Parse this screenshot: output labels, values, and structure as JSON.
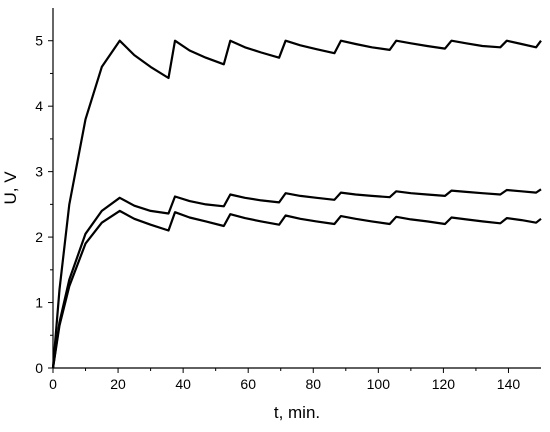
{
  "chart_data": {
    "type": "line",
    "title": "",
    "xlabel": "t, min.",
    "ylabel": "U, V",
    "xlim": [
      0,
      150
    ],
    "ylim": [
      0,
      5.5
    ],
    "xticks": [
      0,
      20,
      40,
      60,
      80,
      100,
      120,
      140
    ],
    "yticks": [
      0,
      1,
      2,
      3,
      4,
      5
    ],
    "grid": false,
    "legend": "none",
    "series": [
      {
        "x": [
          0,
          2,
          5,
          10,
          15,
          20.5,
          25,
          30,
          35.5,
          37.5,
          42,
          47,
          52.5,
          54.5,
          59,
          64,
          69.5,
          71.5,
          76,
          81,
          86.5,
          88.5,
          93,
          98,
          103.5,
          105.5,
          110,
          115,
          120.5,
          122.5,
          127,
          132,
          137.5,
          139.5,
          144,
          148.5,
          150
        ],
        "y": [
          0,
          1.2,
          2.5,
          3.8,
          4.6,
          5.0,
          4.78,
          4.6,
          4.43,
          5.0,
          4.85,
          4.74,
          4.64,
          5.0,
          4.9,
          4.82,
          4.74,
          5.0,
          4.93,
          4.87,
          4.81,
          5.0,
          4.95,
          4.9,
          4.86,
          5.0,
          4.96,
          4.92,
          4.88,
          5.0,
          4.96,
          4.92,
          4.9,
          5.0,
          4.95,
          4.9,
          5.0
        ]
      },
      {
        "x": [
          0,
          2,
          5,
          10,
          15,
          20.5,
          25,
          30,
          35.5,
          37.5,
          42,
          47,
          52.5,
          54.5,
          59,
          64,
          69.5,
          71.5,
          76,
          81,
          86.5,
          88.5,
          93,
          98,
          103.5,
          105.5,
          110,
          115,
          120.5,
          122.5,
          127,
          132,
          137.5,
          139.5,
          144,
          148.5,
          150
        ],
        "y": [
          0,
          0.7,
          1.35,
          2.05,
          2.4,
          2.6,
          2.48,
          2.4,
          2.36,
          2.62,
          2.55,
          2.5,
          2.47,
          2.65,
          2.6,
          2.56,
          2.53,
          2.67,
          2.63,
          2.6,
          2.57,
          2.68,
          2.65,
          2.63,
          2.61,
          2.7,
          2.67,
          2.65,
          2.63,
          2.71,
          2.69,
          2.67,
          2.65,
          2.72,
          2.7,
          2.68,
          2.73
        ]
      },
      {
        "x": [
          0,
          2,
          5,
          10,
          15,
          20.5,
          25,
          30,
          35.5,
          37.5,
          42,
          47,
          52.5,
          54.5,
          59,
          64,
          69.5,
          71.5,
          76,
          81,
          86.5,
          88.5,
          93,
          98,
          103.5,
          105.5,
          110,
          115,
          120.5,
          122.5,
          127,
          132,
          137.5,
          139.5,
          144,
          148.5,
          150
        ],
        "y": [
          0,
          0.65,
          1.25,
          1.9,
          2.22,
          2.4,
          2.28,
          2.19,
          2.1,
          2.38,
          2.3,
          2.24,
          2.17,
          2.35,
          2.29,
          2.24,
          2.19,
          2.33,
          2.28,
          2.24,
          2.2,
          2.32,
          2.28,
          2.24,
          2.2,
          2.31,
          2.27,
          2.24,
          2.2,
          2.3,
          2.27,
          2.24,
          2.21,
          2.29,
          2.26,
          2.22,
          2.28
        ]
      }
    ]
  }
}
